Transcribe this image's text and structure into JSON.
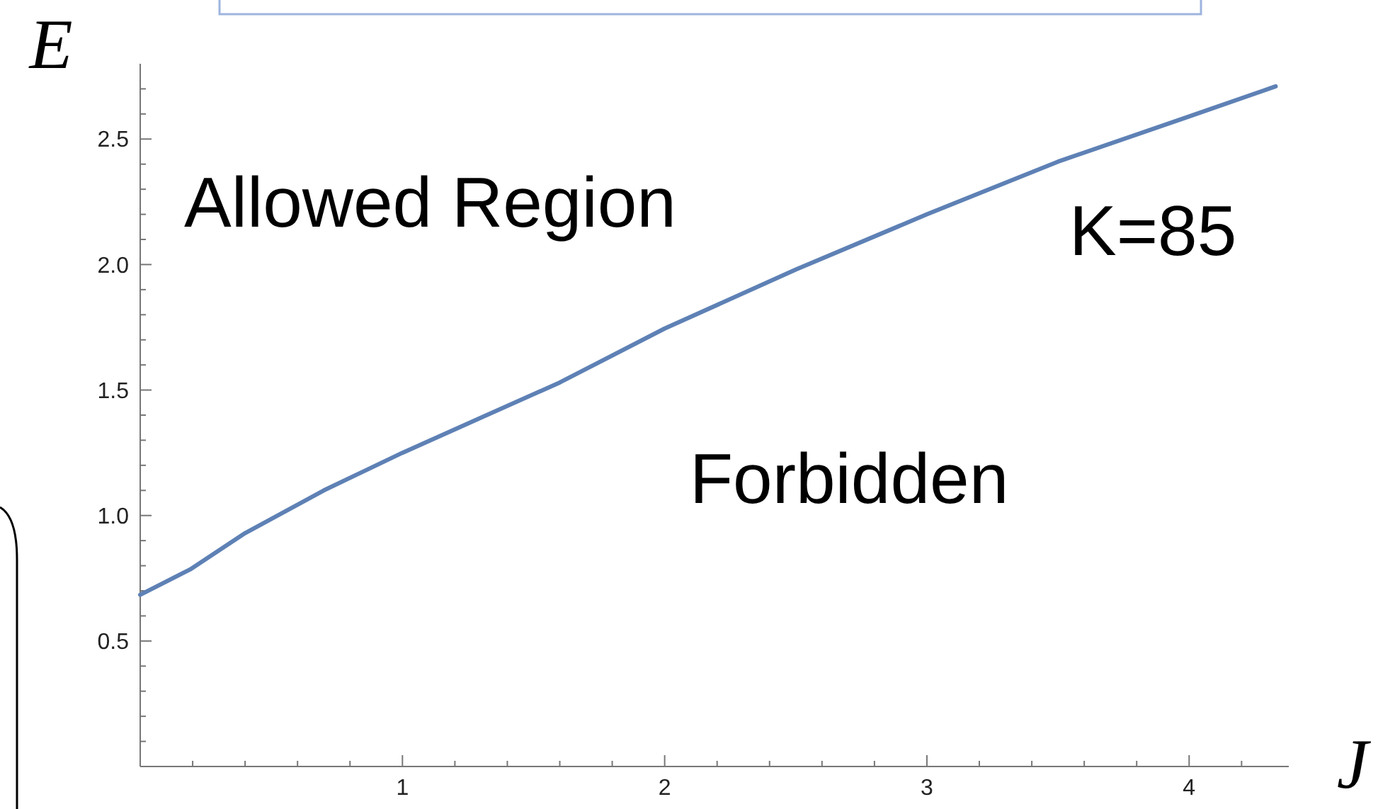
{
  "chart_data": {
    "type": "line",
    "xlabel": "J",
    "ylabel": "E",
    "x": [
      0,
      0.19,
      0.4,
      0.7,
      1,
      1.3,
      1.6,
      2,
      2.5,
      3,
      3.5,
      4,
      4.33
    ],
    "series": [
      {
        "color": "#5e81b5",
        "values": [
          0.684,
          0.785,
          0.93,
          1.1,
          1.25,
          1.39,
          1.53,
          1.745,
          1.98,
          2.2,
          2.41,
          2.59,
          2.71
        ]
      }
    ],
    "xlim": [
      0,
      4.38
    ],
    "ylim": [
      0,
      2.8
    ],
    "xticks": [
      {
        "value": 0.2,
        "label": null
      },
      {
        "value": 0.4,
        "label": null
      },
      {
        "value": 0.6,
        "label": null
      },
      {
        "value": 0.8,
        "label": null
      },
      1,
      {
        "value": 1.2,
        "label": null
      },
      {
        "value": 1.4,
        "label": null
      },
      {
        "value": 1.6,
        "label": null
      },
      {
        "value": 1.8,
        "label": null
      },
      2,
      {
        "value": 2.2,
        "label": null
      },
      {
        "value": 2.4,
        "label": null
      },
      {
        "value": 2.6,
        "label": null
      },
      {
        "value": 2.8,
        "label": null
      },
      3,
      {
        "value": 3.2,
        "label": null
      },
      {
        "value": 3.4,
        "label": null
      },
      {
        "value": 3.6,
        "label": null
      },
      {
        "value": 3.8,
        "label": null
      },
      4,
      {
        "value": 4.2,
        "label": null
      }
    ],
    "yticks": [
      {
        "value": 0.1,
        "label": null
      },
      {
        "value": 0.2,
        "label": null
      },
      {
        "value": 0.3,
        "label": null
      },
      {
        "value": 0.4,
        "label": null
      },
      0.5,
      {
        "value": 0.6,
        "label": null
      },
      {
        "value": 0.7,
        "label": null
      },
      {
        "value": 0.8,
        "label": null
      },
      {
        "value": 0.9,
        "label": null
      },
      {
        "value": 1,
        "label": "1.0"
      },
      {
        "value": 1.1,
        "label": null
      },
      {
        "value": 1.2,
        "label": null
      },
      {
        "value": 1.3,
        "label": null
      },
      {
        "value": 1.4,
        "label": null
      },
      1.5,
      {
        "value": 1.6,
        "label": null
      },
      {
        "value": 1.7,
        "label": null
      },
      {
        "value": 1.8,
        "label": null
      },
      {
        "value": 1.9,
        "label": null
      },
      {
        "value": 2,
        "label": "2.0"
      },
      {
        "value": 2.1,
        "label": null
      },
      {
        "value": 2.2,
        "label": null
      },
      {
        "value": 2.3,
        "label": null
      },
      {
        "value": 2.4,
        "label": null
      },
      2.5,
      {
        "value": 2.6,
        "label": null
      },
      {
        "value": 2.7,
        "label": null
      }
    ],
    "annotations": [
      "Allowed Region",
      "K=85",
      "Forbidden"
    ],
    "grid": false,
    "marker": "none",
    "line_style": "solid"
  }
}
